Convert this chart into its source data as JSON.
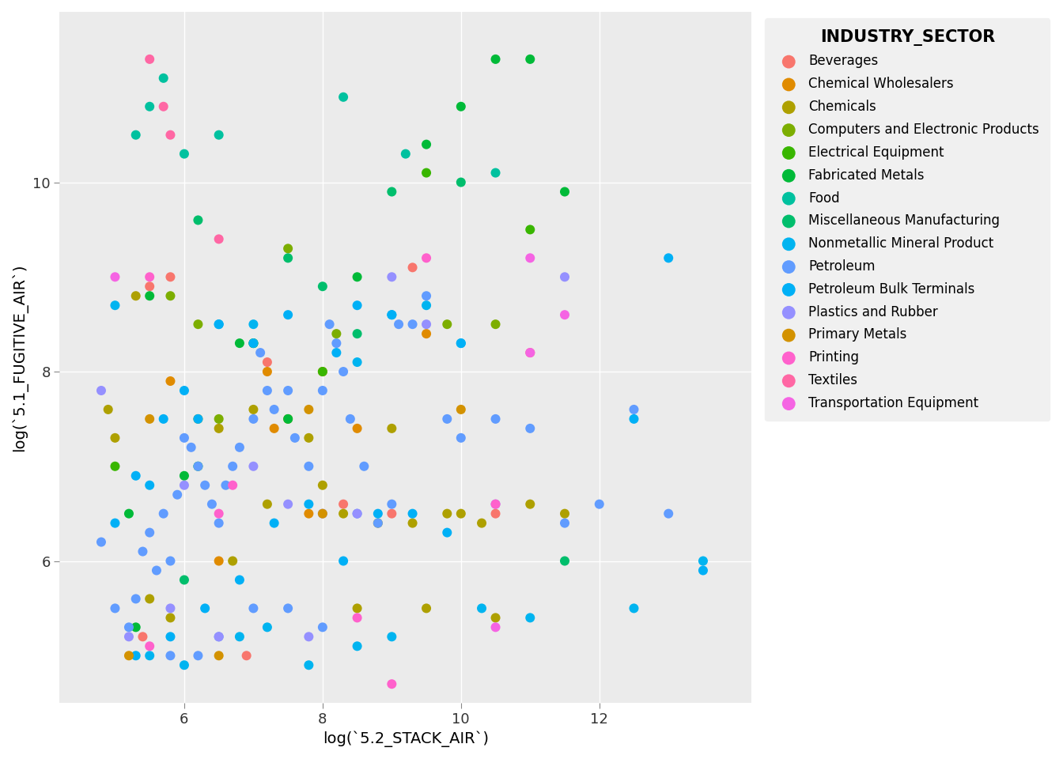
{
  "title": "INDUSTRY_SECTOR",
  "xlabel": "log(`5.2_STACK_AIR`)",
  "ylabel": "log(`5.1_FUGITIVE_AIR`)",
  "xlim": [
    4.2,
    14.2
  ],
  "ylim": [
    4.5,
    11.8
  ],
  "xticks": [
    6,
    8,
    10,
    12
  ],
  "yticks": [
    6,
    8,
    10
  ],
  "background_color": "#EBEBEB",
  "grid_color": "#FFFFFF",
  "sectors": [
    {
      "name": "Beverages",
      "color": "#F8766D",
      "points": [
        [
          5.5,
          8.9
        ],
        [
          5.8,
          9.0
        ],
        [
          7.2,
          8.1
        ],
        [
          9.3,
          9.1
        ],
        [
          11.0,
          8.2
        ],
        [
          5.4,
          5.2
        ],
        [
          6.9,
          5.0
        ],
        [
          8.3,
          6.6
        ],
        [
          9.0,
          6.5
        ],
        [
          10.5,
          6.5
        ]
      ]
    },
    {
      "name": "Chemical Wholesalers",
      "color": "#E08B00",
      "points": [
        [
          5.8,
          7.9
        ],
        [
          7.2,
          8.0
        ],
        [
          7.3,
          7.4
        ],
        [
          8.0,
          8.0
        ],
        [
          8.5,
          7.4
        ],
        [
          9.5,
          8.4
        ],
        [
          6.5,
          6.0
        ],
        [
          7.8,
          6.5
        ]
      ]
    },
    {
      "name": "Chemicals",
      "color": "#AEA000",
      "points": [
        [
          4.9,
          7.6
        ],
        [
          5.3,
          8.8
        ],
        [
          5.5,
          5.6
        ],
        [
          5.8,
          5.4
        ],
        [
          6.2,
          7.5
        ],
        [
          6.5,
          7.4
        ],
        [
          6.7,
          6.0
        ],
        [
          7.0,
          7.6
        ],
        [
          7.2,
          6.6
        ],
        [
          7.5,
          7.5
        ],
        [
          7.8,
          7.3
        ],
        [
          8.0,
          6.8
        ],
        [
          8.3,
          6.5
        ],
        [
          8.5,
          5.5
        ],
        [
          8.8,
          6.4
        ],
        [
          9.0,
          7.4
        ],
        [
          9.3,
          6.4
        ],
        [
          9.5,
          5.5
        ],
        [
          9.8,
          6.5
        ],
        [
          10.0,
          6.5
        ],
        [
          10.3,
          6.4
        ],
        [
          10.5,
          5.4
        ],
        [
          11.0,
          6.6
        ],
        [
          11.5,
          6.5
        ],
        [
          5.0,
          7.3
        ]
      ]
    },
    {
      "name": "Computers and Electronic Products",
      "color": "#7CAE00",
      "points": [
        [
          5.8,
          8.8
        ],
        [
          6.2,
          8.5
        ],
        [
          7.5,
          9.3
        ],
        [
          8.2,
          8.4
        ],
        [
          9.8,
          8.5
        ],
        [
          10.5,
          8.5
        ],
        [
          6.5,
          7.5
        ]
      ]
    },
    {
      "name": "Electrical Equipment",
      "color": "#39B600",
      "points": [
        [
          5.0,
          7.0
        ],
        [
          7.0,
          8.3
        ],
        [
          8.0,
          8.0
        ],
        [
          9.5,
          10.1
        ],
        [
          11.0,
          9.5
        ]
      ]
    },
    {
      "name": "Fabricated Metals",
      "color": "#00BA38",
      "points": [
        [
          5.2,
          6.5
        ],
        [
          5.5,
          8.8
        ],
        [
          6.0,
          6.9
        ],
        [
          6.2,
          7.0
        ],
        [
          6.8,
          8.3
        ],
        [
          7.5,
          7.5
        ],
        [
          8.5,
          9.0
        ],
        [
          9.5,
          10.4
        ],
        [
          10.0,
          10.8
        ],
        [
          10.5,
          11.3
        ],
        [
          11.0,
          11.3
        ],
        [
          11.5,
          9.9
        ],
        [
          5.3,
          5.3
        ],
        [
          7.0,
          8.3
        ]
      ]
    },
    {
      "name": "Food",
      "color": "#00C19F",
      "points": [
        [
          5.3,
          10.5
        ],
        [
          5.5,
          10.8
        ],
        [
          5.7,
          11.1
        ],
        [
          6.0,
          10.3
        ],
        [
          6.5,
          10.5
        ],
        [
          8.3,
          10.9
        ],
        [
          9.2,
          10.3
        ],
        [
          10.5,
          10.1
        ]
      ]
    },
    {
      "name": "Miscellaneous Manufacturing",
      "color": "#00BE6C",
      "points": [
        [
          6.2,
          9.6
        ],
        [
          7.5,
          9.2
        ],
        [
          8.0,
          8.9
        ],
        [
          9.0,
          9.9
        ],
        [
          10.0,
          10.0
        ],
        [
          6.0,
          5.8
        ],
        [
          11.5,
          6.0
        ],
        [
          8.5,
          8.4
        ]
      ]
    },
    {
      "name": "Nonmetallic Mineral Product",
      "color": "#00B4F0",
      "points": [
        [
          5.0,
          8.7
        ],
        [
          6.5,
          8.5
        ],
        [
          7.0,
          8.5
        ],
        [
          8.5,
          8.1
        ],
        [
          9.0,
          8.6
        ],
        [
          9.5,
          8.7
        ],
        [
          10.0,
          8.3
        ],
        [
          5.5,
          5.0
        ],
        [
          6.0,
          4.9
        ],
        [
          6.8,
          5.2
        ],
        [
          7.2,
          5.3
        ],
        [
          7.8,
          4.9
        ],
        [
          8.5,
          5.1
        ],
        [
          9.0,
          5.2
        ],
        [
          10.3,
          5.5
        ],
        [
          11.0,
          5.4
        ],
        [
          12.5,
          5.5
        ],
        [
          13.5,
          6.0
        ]
      ]
    },
    {
      "name": "Petroleum",
      "color": "#619CFF",
      "points": [
        [
          4.8,
          6.2
        ],
        [
          5.0,
          5.5
        ],
        [
          5.2,
          5.3
        ],
        [
          5.3,
          5.6
        ],
        [
          5.4,
          6.1
        ],
        [
          5.5,
          6.3
        ],
        [
          5.6,
          5.9
        ],
        [
          5.7,
          6.5
        ],
        [
          5.8,
          6.0
        ],
        [
          5.9,
          6.7
        ],
        [
          6.0,
          7.3
        ],
        [
          6.1,
          7.2
        ],
        [
          6.2,
          7.0
        ],
        [
          6.3,
          6.8
        ],
        [
          6.4,
          6.6
        ],
        [
          6.5,
          6.4
        ],
        [
          6.6,
          6.8
        ],
        [
          6.7,
          7.0
        ],
        [
          6.8,
          7.2
        ],
        [
          7.0,
          7.5
        ],
        [
          7.1,
          8.2
        ],
        [
          7.2,
          7.8
        ],
        [
          7.3,
          7.6
        ],
        [
          7.5,
          7.8
        ],
        [
          7.6,
          7.3
        ],
        [
          7.8,
          7.0
        ],
        [
          8.0,
          7.8
        ],
        [
          8.1,
          8.5
        ],
        [
          8.2,
          8.3
        ],
        [
          8.3,
          8.0
        ],
        [
          8.4,
          7.5
        ],
        [
          8.5,
          6.5
        ],
        [
          8.6,
          7.0
        ],
        [
          8.8,
          6.4
        ],
        [
          9.0,
          6.6
        ],
        [
          9.1,
          8.5
        ],
        [
          9.3,
          8.5
        ],
        [
          9.5,
          8.8
        ],
        [
          9.8,
          7.5
        ],
        [
          10.0,
          7.3
        ],
        [
          10.5,
          7.5
        ],
        [
          11.0,
          7.4
        ],
        [
          11.5,
          6.4
        ],
        [
          12.0,
          6.6
        ],
        [
          12.5,
          7.6
        ],
        [
          13.0,
          6.5
        ],
        [
          5.8,
          5.0
        ],
        [
          6.2,
          5.0
        ],
        [
          6.5,
          5.2
        ],
        [
          7.0,
          5.5
        ],
        [
          7.5,
          5.5
        ],
        [
          8.0,
          5.3
        ]
      ]
    },
    {
      "name": "Petroleum Bulk Terminals",
      "color": "#00B0F6",
      "points": [
        [
          5.0,
          6.4
        ],
        [
          5.3,
          6.9
        ],
        [
          5.5,
          6.8
        ],
        [
          5.7,
          7.5
        ],
        [
          6.0,
          7.8
        ],
        [
          6.2,
          7.5
        ],
        [
          6.5,
          8.5
        ],
        [
          7.0,
          8.3
        ],
        [
          7.5,
          8.6
        ],
        [
          8.2,
          8.2
        ],
        [
          8.5,
          8.7
        ],
        [
          9.0,
          8.6
        ],
        [
          10.0,
          8.3
        ],
        [
          12.5,
          7.5
        ],
        [
          13.0,
          9.2
        ],
        [
          5.3,
          5.0
        ],
        [
          5.8,
          5.2
        ],
        [
          6.3,
          5.5
        ],
        [
          6.8,
          5.8
        ],
        [
          7.3,
          6.4
        ],
        [
          7.8,
          6.6
        ],
        [
          8.3,
          6.0
        ],
        [
          8.8,
          6.5
        ],
        [
          9.3,
          6.5
        ],
        [
          9.8,
          6.3
        ],
        [
          13.5,
          5.9
        ]
      ]
    },
    {
      "name": "Plastics and Rubber",
      "color": "#9590FF",
      "points": [
        [
          4.8,
          7.8
        ],
        [
          5.2,
          5.2
        ],
        [
          6.0,
          6.8
        ],
        [
          7.0,
          7.0
        ],
        [
          7.5,
          6.6
        ],
        [
          8.0,
          6.5
        ],
        [
          8.5,
          6.5
        ],
        [
          9.0,
          9.0
        ],
        [
          9.5,
          8.5
        ],
        [
          10.5,
          6.6
        ],
        [
          11.5,
          9.0
        ],
        [
          5.8,
          5.5
        ],
        [
          6.5,
          5.2
        ],
        [
          7.8,
          5.2
        ]
      ]
    },
    {
      "name": "Primary Metals",
      "color": "#D39200",
      "points": [
        [
          5.5,
          7.5
        ],
        [
          7.8,
          7.6
        ],
        [
          8.0,
          6.5
        ],
        [
          10.0,
          7.6
        ],
        [
          5.2,
          5.0
        ],
        [
          6.5,
          5.0
        ]
      ]
    },
    {
      "name": "Printing",
      "color": "#FF61CC",
      "points": [
        [
          5.5,
          9.0
        ],
        [
          5.5,
          5.1
        ],
        [
          6.5,
          6.5
        ],
        [
          6.7,
          6.8
        ],
        [
          8.5,
          5.4
        ],
        [
          9.0,
          4.7
        ],
        [
          9.5,
          9.2
        ],
        [
          10.5,
          6.6
        ]
      ]
    },
    {
      "name": "Textiles",
      "color": "#FF67A4",
      "points": [
        [
          5.5,
          11.3
        ],
        [
          5.7,
          10.8
        ],
        [
          5.8,
          10.5
        ],
        [
          6.5,
          9.4
        ]
      ]
    },
    {
      "name": "Transportation Equipment",
      "color": "#F564E3",
      "points": [
        [
          5.0,
          9.0
        ],
        [
          11.0,
          9.2
        ],
        [
          11.5,
          8.6
        ],
        [
          11.0,
          8.2
        ],
        [
          10.5,
          5.3
        ]
      ]
    }
  ]
}
